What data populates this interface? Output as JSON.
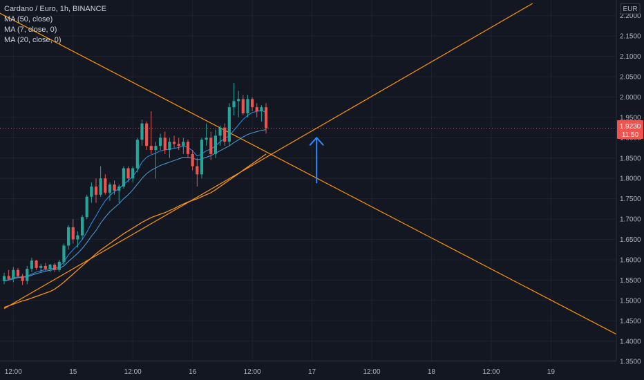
{
  "legend": {
    "title": "Cardano / Euro, 1h, BINANCE",
    "indicators": [
      "MA (50, close)",
      "MA (7, close, 0)",
      "MA (20, close, 0)"
    ]
  },
  "currency": "EUR",
  "current_price": {
    "price": "1.9230",
    "countdown": "11:50"
  },
  "colors": {
    "background": "#131722",
    "grid": "#1e2230",
    "up": "#26a69a",
    "down": "#ef5350",
    "ma50": "#f7931a",
    "ma_short": "#2196f3",
    "trendline": "#ff9800",
    "arrow": "#2f8cff"
  },
  "chart_data": {
    "type": "candlestick",
    "symbol": "Cardano / Euro, 1h, BINANCE",
    "x_ticks": [
      "12:00",
      "15",
      "12:00",
      "16",
      "12:00",
      "17",
      "12:00",
      "18",
      "12:00",
      "19"
    ],
    "y_ticks": [
      "1.3500",
      "1.4000",
      "1.4500",
      "1.5000",
      "1.5500",
      "1.6000",
      "1.6500",
      "1.7000",
      "1.7500",
      "1.8000",
      "1.8500",
      "1.9000",
      "1.9500",
      "2.0000",
      "2.0500",
      "2.1000",
      "2.1500",
      "2.2000"
    ],
    "ylim": [
      1.33,
      2.23
    ],
    "candles": [
      [
        1.548,
        1.568,
        1.54,
        1.56
      ],
      [
        1.56,
        1.575,
        1.55,
        1.553
      ],
      [
        1.553,
        1.582,
        1.545,
        1.575
      ],
      [
        1.575,
        1.58,
        1.555,
        1.56
      ],
      [
        1.56,
        1.565,
        1.538,
        1.548
      ],
      [
        1.548,
        1.585,
        1.54,
        1.578
      ],
      [
        1.578,
        1.605,
        1.57,
        1.598
      ],
      [
        1.598,
        1.6,
        1.575,
        1.58
      ],
      [
        1.58,
        1.59,
        1.57,
        1.585
      ],
      [
        1.585,
        1.592,
        1.572,
        1.578
      ],
      [
        1.578,
        1.59,
        1.57,
        1.588
      ],
      [
        1.588,
        1.592,
        1.57,
        1.575
      ],
      [
        1.575,
        1.6,
        1.57,
        1.595
      ],
      [
        1.595,
        1.64,
        1.588,
        1.635
      ],
      [
        1.635,
        1.685,
        1.625,
        1.68
      ],
      [
        1.68,
        1.7,
        1.64,
        1.65
      ],
      [
        1.65,
        1.67,
        1.63,
        1.66
      ],
      [
        1.66,
        1.71,
        1.65,
        1.705
      ],
      [
        1.705,
        1.76,
        1.7,
        1.755
      ],
      [
        1.755,
        1.79,
        1.74,
        1.78
      ],
      [
        1.78,
        1.8,
        1.74,
        1.76
      ],
      [
        1.76,
        1.83,
        1.755,
        1.8
      ],
      [
        1.8,
        1.81,
        1.76,
        1.765
      ],
      [
        1.765,
        1.79,
        1.745,
        1.785
      ],
      [
        1.785,
        1.795,
        1.76,
        1.77
      ],
      [
        1.77,
        1.785,
        1.74,
        1.78
      ],
      [
        1.78,
        1.83,
        1.775,
        1.825
      ],
      [
        1.825,
        1.83,
        1.79,
        1.8
      ],
      [
        1.8,
        1.83,
        1.79,
        1.825
      ],
      [
        1.825,
        1.9,
        1.815,
        1.895
      ],
      [
        1.895,
        1.945,
        1.88,
        1.935
      ],
      [
        1.935,
        1.94,
        1.87,
        1.88
      ],
      [
        1.88,
        1.965,
        1.86,
        1.87
      ],
      [
        1.87,
        1.89,
        1.8,
        1.88
      ],
      [
        1.88,
        1.91,
        1.87,
        1.9
      ],
      [
        1.9,
        1.915,
        1.86,
        1.87
      ],
      [
        1.87,
        1.9,
        1.85,
        1.89
      ],
      [
        1.89,
        1.905,
        1.875,
        1.885
      ],
      [
        1.885,
        1.9,
        1.87,
        1.88
      ],
      [
        1.88,
        1.9,
        1.86,
        1.89
      ],
      [
        1.89,
        1.895,
        1.85,
        1.86
      ],
      [
        1.86,
        1.87,
        1.82,
        1.83
      ],
      [
        1.83,
        1.85,
        1.78,
        1.81
      ],
      [
        1.81,
        1.9,
        1.8,
        1.895
      ],
      [
        1.895,
        1.935,
        1.88,
        1.9
      ],
      [
        1.9,
        1.915,
        1.845,
        1.86
      ],
      [
        1.86,
        1.92,
        1.85,
        1.905
      ],
      [
        1.905,
        1.93,
        1.88,
        1.925
      ],
      [
        1.925,
        1.935,
        1.88,
        1.89
      ],
      [
        1.89,
        1.985,
        1.88,
        1.975
      ],
      [
        1.975,
        2.035,
        1.955,
        1.99
      ],
      [
        1.99,
        2.015,
        1.95,
        1.995
      ],
      [
        1.995,
        2.005,
        1.955,
        1.96
      ],
      [
        1.96,
        2.005,
        1.95,
        1.995
      ],
      [
        1.995,
        2.0,
        1.965,
        1.975
      ],
      [
        1.975,
        1.985,
        1.95,
        1.965
      ],
      [
        1.965,
        1.98,
        1.94,
        1.975
      ],
      [
        1.975,
        1.985,
        1.91,
        1.923
      ]
    ],
    "ma_short_values": [
      1.548,
      1.552,
      1.556,
      1.558,
      1.557,
      1.56,
      1.565,
      1.57,
      1.573,
      1.576,
      1.578,
      1.579,
      1.583,
      1.595,
      1.612,
      1.625,
      1.636,
      1.65,
      1.668,
      1.69,
      1.708,
      1.728,
      1.745,
      1.758,
      1.768,
      1.775,
      1.785,
      1.795,
      1.805,
      1.82,
      1.84,
      1.852,
      1.858,
      1.862,
      1.868,
      1.87,
      1.872,
      1.874,
      1.876,
      1.88,
      1.876,
      1.868,
      1.855,
      1.86,
      1.868,
      1.872,
      1.88,
      1.89,
      1.898,
      1.905,
      1.918,
      1.932,
      1.945,
      1.955,
      1.962,
      1.965,
      1.967,
      1.962
    ],
    "ma_short2_values": [
      1.548,
      1.55,
      1.553,
      1.556,
      1.557,
      1.558,
      1.562,
      1.566,
      1.569,
      1.572,
      1.574,
      1.576,
      1.579,
      1.585,
      1.596,
      1.606,
      1.616,
      1.628,
      1.642,
      1.658,
      1.672,
      1.69,
      1.705,
      1.718,
      1.728,
      1.738,
      1.75,
      1.76,
      1.772,
      1.786,
      1.8,
      1.812,
      1.82,
      1.826,
      1.832,
      1.836,
      1.84,
      1.844,
      1.848,
      1.852,
      1.852,
      1.85,
      1.846,
      1.848,
      1.852,
      1.856,
      1.862,
      1.868,
      1.874,
      1.88,
      1.888,
      1.895,
      1.902,
      1.908,
      1.912,
      1.915,
      1.918,
      1.92
    ],
    "ma50_values": [
      1.483,
      1.487,
      1.491,
      1.495,
      1.499,
      1.502,
      1.506,
      1.51,
      1.514,
      1.518,
      1.522,
      1.528,
      1.536,
      1.545,
      1.555,
      1.565,
      1.575,
      1.585,
      1.595,
      1.605,
      1.615,
      1.624,
      1.632,
      1.64,
      1.648,
      1.656,
      1.664,
      1.671,
      1.678,
      1.685,
      1.692,
      1.698,
      1.704,
      1.708,
      1.712,
      1.716,
      1.721,
      1.726,
      1.732,
      1.737,
      1.742,
      1.746,
      1.75,
      1.755,
      1.76,
      1.765,
      1.772,
      1.78,
      1.788,
      1.796,
      1.804,
      1.812,
      1.82,
      1.828,
      1.836,
      1.844,
      1.852,
      1.86
    ],
    "trendlines": [
      {
        "name": "descending resistance",
        "from": {
          "bar": -5,
          "price": 2.23
        },
        "to": {
          "bar": 137,
          "price": 1.395
        }
      },
      {
        "name": "ascending support",
        "from": {
          "bar": 0,
          "price": 1.48
        },
        "to": {
          "bar": 115,
          "price": 2.23
        }
      }
    ],
    "annotation_arrow": {
      "bar": 68,
      "from_price": 1.788,
      "to_price": 1.9
    }
  }
}
